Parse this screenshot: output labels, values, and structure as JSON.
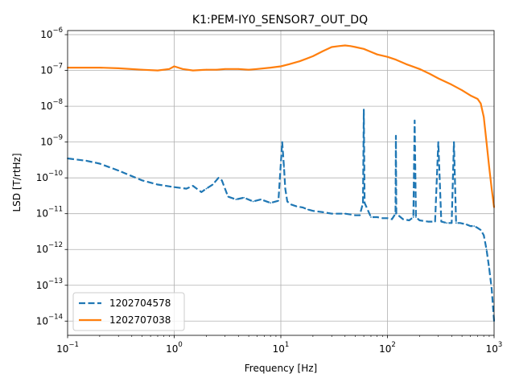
{
  "chart_data": {
    "type": "line",
    "title": "K1:PEM-IY0_SENSOR7_OUT_DQ",
    "xlabel": "Frequency [Hz]",
    "ylabel": "LSD [T/rtHz]",
    "xscale": "log",
    "yscale": "log",
    "xlim": [
      0.1,
      1000
    ],
    "ylim": [
      4e-15,
      1.3e-06
    ],
    "grid": true,
    "legend_position": "lower-left",
    "x_ticks": [
      {
        "value": 0.1,
        "base": "10",
        "exp": "−1"
      },
      {
        "value": 1,
        "base": "10",
        "exp": "0"
      },
      {
        "value": 10,
        "base": "10",
        "exp": "1"
      },
      {
        "value": 100,
        "base": "10",
        "exp": "2"
      },
      {
        "value": 1000,
        "base": "10",
        "exp": "3"
      }
    ],
    "y_ticks": [
      {
        "value": 1e-14,
        "base": "10",
        "exp": "−14"
      },
      {
        "value": 1e-13,
        "base": "10",
        "exp": "−13"
      },
      {
        "value": 1e-12,
        "base": "10",
        "exp": "−12"
      },
      {
        "value": 1e-11,
        "base": "10",
        "exp": "−11"
      },
      {
        "value": 1e-10,
        "base": "10",
        "exp": "−10"
      },
      {
        "value": 1e-09,
        "base": "10",
        "exp": "−9"
      },
      {
        "value": 1e-08,
        "base": "10",
        "exp": "−8"
      },
      {
        "value": 1e-07,
        "base": "10",
        "exp": "−7"
      },
      {
        "value": 1e-06,
        "base": "10",
        "exp": "−6"
      }
    ],
    "series": [
      {
        "name": "1202704578",
        "color": "#1f77b4",
        "style": "dashed",
        "x": [
          0.1,
          0.15,
          0.2,
          0.3,
          0.5,
          0.7,
          1.0,
          1.3,
          1.5,
          1.8,
          2.0,
          2.3,
          2.6,
          2.8,
          3.2,
          3.8,
          4.5,
          5.5,
          6.5,
          8.0,
          9.5,
          10.3,
          10.7,
          11.0,
          11.5,
          12.5,
          14.0,
          16.0,
          18.0,
          20.0,
          25.0,
          30.0,
          35.0,
          40.0,
          45.0,
          50.0,
          55.0,
          59.0,
          60.0,
          61.0,
          70.0,
          80.0,
          90.0,
          100.0,
          110.0,
          119.0,
          120.0,
          121.0,
          140.0,
          160.0,
          175.0,
          180.0,
          185.0,
          200.0,
          240.0,
          280.0,
          300.0,
          320.0,
          360.0,
          400.0,
          420.0,
          440.0,
          480.0,
          550.0,
          600.0,
          650.0,
          700.0,
          750.0,
          800.0,
          850.0,
          900.0,
          950.0,
          1000.0
        ],
        "y": [
          3.5e-10,
          3e-10,
          2.5e-10,
          1.6e-10,
          8.5e-11,
          6.5e-11,
          5.5e-11,
          5e-11,
          6e-11,
          4e-11,
          5e-11,
          6.5e-11,
          1e-10,
          8.5e-11,
          3e-11,
          2.5e-11,
          2.8e-11,
          2.2e-11,
          2.5e-11,
          2e-11,
          2.3e-11,
          1e-09,
          2e-10,
          5e-11,
          2.2e-11,
          1.8e-11,
          1.6e-11,
          1.5e-11,
          1.3e-11,
          1.2e-11,
          1.1e-11,
          1e-11,
          1e-11,
          1e-11,
          9.5e-12,
          9e-12,
          9e-12,
          2e-11,
          8e-09,
          2e-11,
          8e-12,
          8e-12,
          7.5e-12,
          7.5e-12,
          7e-12,
          1e-11,
          1.5e-09,
          1e-11,
          7e-12,
          6.5e-12,
          8e-12,
          4e-09,
          8e-12,
          6.5e-12,
          6e-12,
          6e-12,
          1e-09,
          6e-12,
          5.5e-12,
          5.5e-12,
          1e-09,
          5.5e-12,
          5.5e-12,
          5e-12,
          4.5e-12,
          4.5e-12,
          4e-12,
          3.5e-12,
          2.5e-12,
          1e-12,
          3e-13,
          8e-14,
          1e-14
        ]
      },
      {
        "name": "1202707038",
        "color": "#ff7f0e",
        "style": "solid",
        "x": [
          0.1,
          0.2,
          0.3,
          0.5,
          0.7,
          0.9,
          1.0,
          1.2,
          1.5,
          2.0,
          2.5,
          3.0,
          4.0,
          5.0,
          6.0,
          8.0,
          10.0,
          12.0,
          15.0,
          20.0,
          25.0,
          30.0,
          35.0,
          40.0,
          45.0,
          50.0,
          60.0,
          70.0,
          80.0,
          100.0,
          120.0,
          150.0,
          200.0,
          250.0,
          300.0,
          400.0,
          500.0,
          600.0,
          700.0,
          750.0,
          800.0,
          850.0,
          900.0,
          950.0,
          1000.0
        ],
        "y": [
          1.2e-07,
          1.2e-07,
          1.15e-07,
          1.05e-07,
          1e-07,
          1.1e-07,
          1.3e-07,
          1.1e-07,
          1e-07,
          1.05e-07,
          1.05e-07,
          1.1e-07,
          1.1e-07,
          1.05e-07,
          1.1e-07,
          1.2e-07,
          1.3e-07,
          1.5e-07,
          1.8e-07,
          2.5e-07,
          3.5e-07,
          4.5e-07,
          4.8e-07,
          5e-07,
          4.8e-07,
          4.5e-07,
          4e-07,
          3.3e-07,
          2.8e-07,
          2.4e-07,
          2e-07,
          1.5e-07,
          1.1e-07,
          8e-08,
          6e-08,
          4e-08,
          2.8e-08,
          2e-08,
          1.6e-08,
          1.2e-08,
          5e-09,
          1e-09,
          2e-10,
          5e-11,
          1.5e-11
        ]
      }
    ]
  }
}
